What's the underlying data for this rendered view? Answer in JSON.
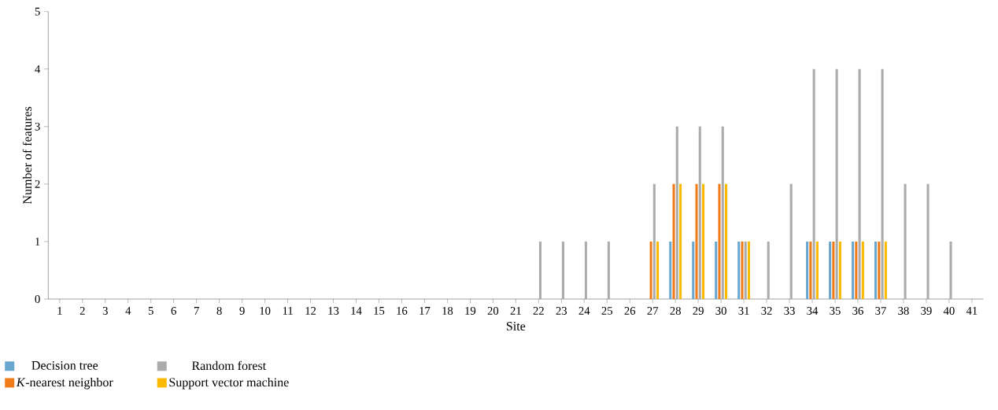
{
  "chart_data": {
    "type": "bar",
    "xlabel": "Site",
    "ylabel": "Number of features",
    "categories": [
      "1",
      "2",
      "3",
      "4",
      "5",
      "6",
      "7",
      "8",
      "9",
      "10",
      "11",
      "12",
      "13",
      "14",
      "15",
      "16",
      "17",
      "18",
      "19",
      "20",
      "21",
      "22",
      "23",
      "24",
      "25",
      "26",
      "27",
      "28",
      "29",
      "30",
      "31",
      "32",
      "33",
      "34",
      "35",
      "36",
      "37",
      "38",
      "39",
      "40",
      "41"
    ],
    "series": [
      {
        "name": "Decision tree",
        "color": "#6aa7cf",
        "values": [
          0,
          0,
          0,
          0,
          0,
          0,
          0,
          0,
          0,
          0,
          0,
          0,
          0,
          0,
          0,
          0,
          0,
          0,
          0,
          0,
          0,
          0,
          0,
          0,
          0,
          0,
          0,
          1,
          1,
          1,
          1,
          0,
          0,
          1,
          1,
          1,
          1,
          0,
          0,
          0,
          0
        ]
      },
      {
        "name": "*K*-nearest neighbor",
        "color": "#f07c19",
        "values": [
          0,
          0,
          0,
          0,
          0,
          0,
          0,
          0,
          0,
          0,
          0,
          0,
          0,
          0,
          0,
          0,
          0,
          0,
          0,
          0,
          0,
          0,
          0,
          0,
          0,
          0,
          1,
          2,
          2,
          2,
          1,
          0,
          0,
          1,
          1,
          1,
          1,
          0,
          0,
          0,
          0
        ]
      },
      {
        "name": "Random forest",
        "color": "#ababab",
        "values": [
          0,
          0,
          0,
          0,
          0,
          0,
          0,
          0,
          0,
          0,
          0,
          0,
          0,
          0,
          0,
          0,
          0,
          0,
          0,
          0,
          0,
          1,
          1,
          1,
          1,
          0,
          2,
          3,
          3,
          3,
          1,
          1,
          2,
          4,
          4,
          4,
          4,
          2,
          2,
          1,
          0
        ]
      },
      {
        "name": "Support vector machine",
        "color": "#fbb900",
        "values": [
          0,
          0,
          0,
          0,
          0,
          0,
          0,
          0,
          0,
          0,
          0,
          0,
          0,
          0,
          0,
          0,
          0,
          0,
          0,
          0,
          0,
          0,
          0,
          0,
          0,
          0,
          1,
          2,
          2,
          2,
          1,
          0,
          0,
          1,
          1,
          1,
          1,
          0,
          0,
          0,
          0
        ]
      }
    ],
    "ylim": [
      0,
      5
    ],
    "yticks": [
      0,
      1,
      2,
      3,
      4,
      5
    ],
    "grid": false,
    "legend": "bottom left"
  }
}
